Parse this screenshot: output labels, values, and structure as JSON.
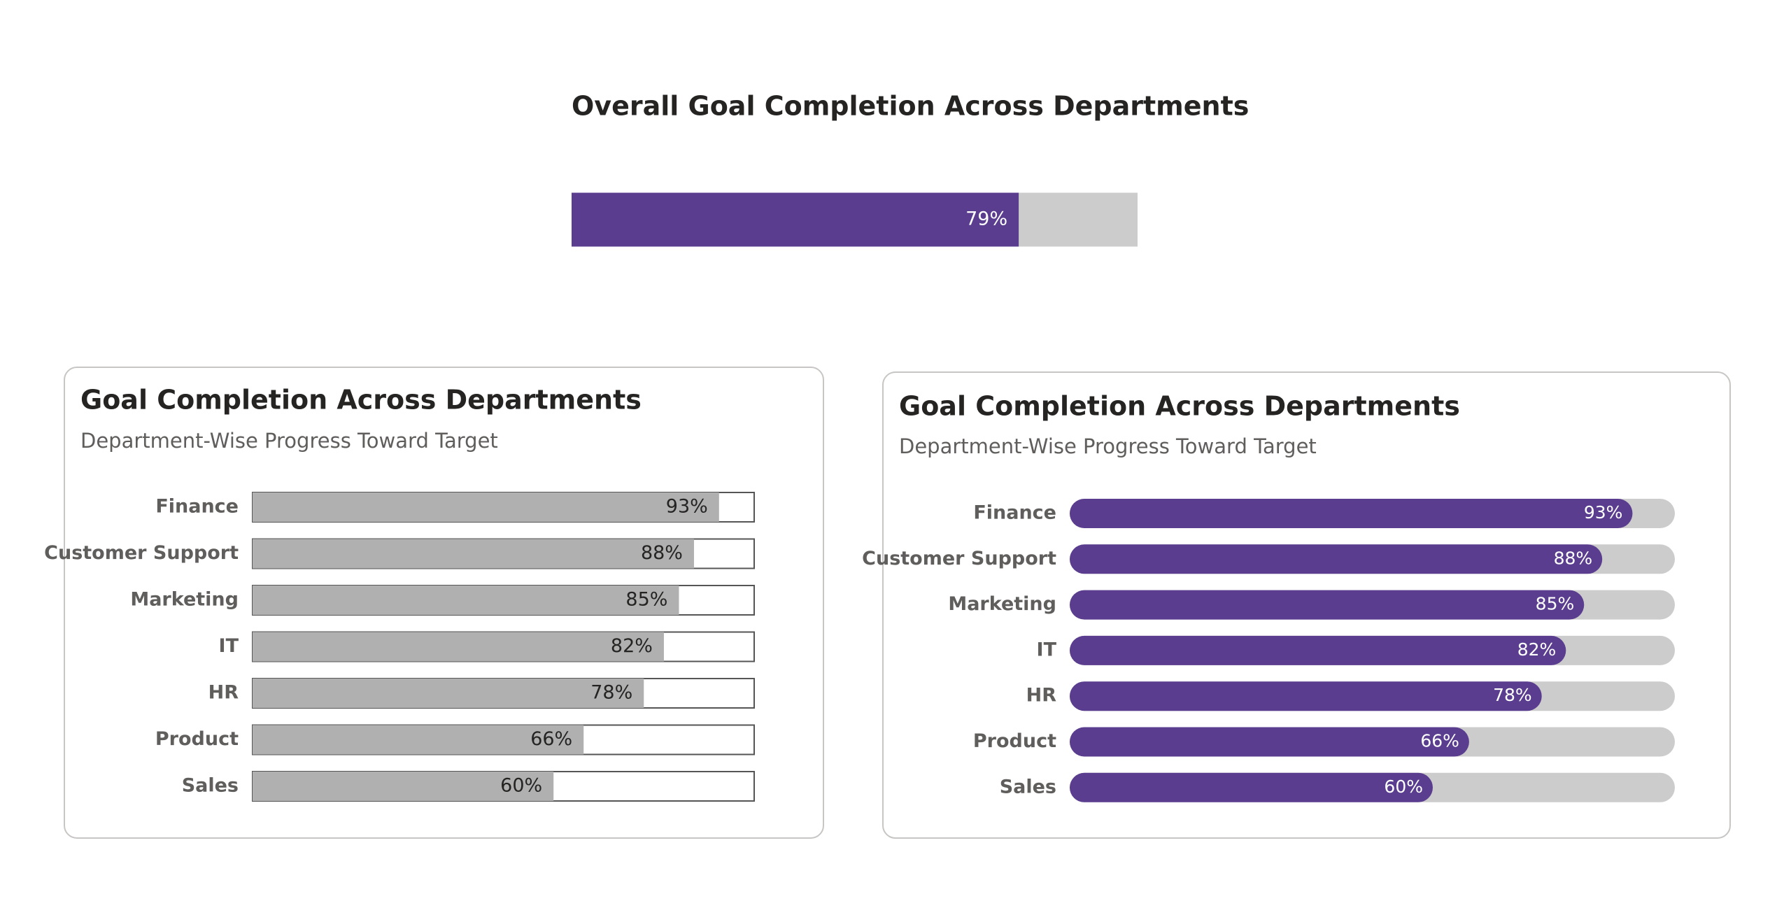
{
  "chart_data": [
    {
      "type": "bar",
      "title": "Overall Goal Completion Across Departments",
      "values": [
        79
      ],
      "value_labels": [
        "79%"
      ],
      "xlim": [
        0,
        100
      ],
      "color": "#5a3d8f",
      "track_color": "#cccccc",
      "label_color": "#ffffff",
      "rounded": false
    },
    {
      "type": "bar",
      "title": "Goal Completion Across Departments",
      "subtitle": "Department-Wise Progress Toward Target",
      "categories": [
        "Finance",
        "Customer Support",
        "Marketing",
        "IT",
        "HR",
        "Product",
        "Sales"
      ],
      "values": [
        93,
        88,
        85,
        82,
        78,
        66,
        60
      ],
      "value_labels": [
        "93%",
        "88%",
        "85%",
        "82%",
        "78%",
        "66%",
        "60%"
      ],
      "xlim": [
        0,
        100
      ],
      "color": "#b0b0b0",
      "track_color": "#ffffff",
      "track_border": "#555555",
      "label_color": "#252423",
      "rounded": false
    },
    {
      "type": "bar",
      "title": "Goal Completion Across Departments",
      "subtitle": "Department-Wise Progress Toward Target",
      "categories": [
        "Finance",
        "Customer Support",
        "Marketing",
        "IT",
        "HR",
        "Product",
        "Sales"
      ],
      "values": [
        93,
        88,
        85,
        82,
        78,
        66,
        60
      ],
      "value_labels": [
        "93%",
        "88%",
        "85%",
        "82%",
        "78%",
        "66%",
        "60%"
      ],
      "xlim": [
        0,
        100
      ],
      "color": "#5a3d8f",
      "track_color": "#cccccc",
      "label_color": "#ffffff",
      "rounded": true
    }
  ]
}
